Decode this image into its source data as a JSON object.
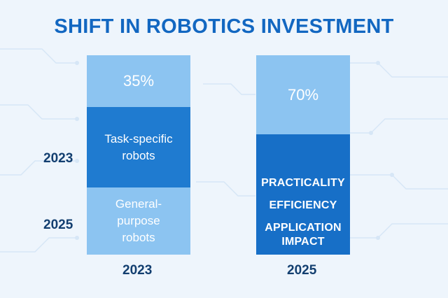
{
  "chart_data": {
    "type": "bar",
    "title": "SHIFT IN ROBOTICS INVESTMENT",
    "categories": [
      "2023",
      "2025"
    ],
    "row_labels": [
      "2023",
      "2025"
    ],
    "bars": [
      {
        "category": "2023",
        "percent_label": "35%",
        "value": 35,
        "segments": [
          {
            "label": "35%",
            "value": 35
          },
          {
            "label": "Task-specific robots"
          },
          {
            "label": "General-purpose robots"
          }
        ]
      },
      {
        "category": "2025",
        "percent_label": "70%",
        "value": 70,
        "segments": [
          {
            "label": "70%",
            "value": 70
          },
          {
            "label": "PRACTICALITY"
          },
          {
            "label": "EFFICIENCY"
          },
          {
            "label": "APPLICATION IMPACT"
          }
        ]
      }
    ]
  },
  "colors": {
    "title": "#1267c1",
    "light_segment": "#8cc4f1",
    "dark_segment": "#1f7bd0",
    "label_text": "#133f70",
    "background": "#eef5fc"
  }
}
